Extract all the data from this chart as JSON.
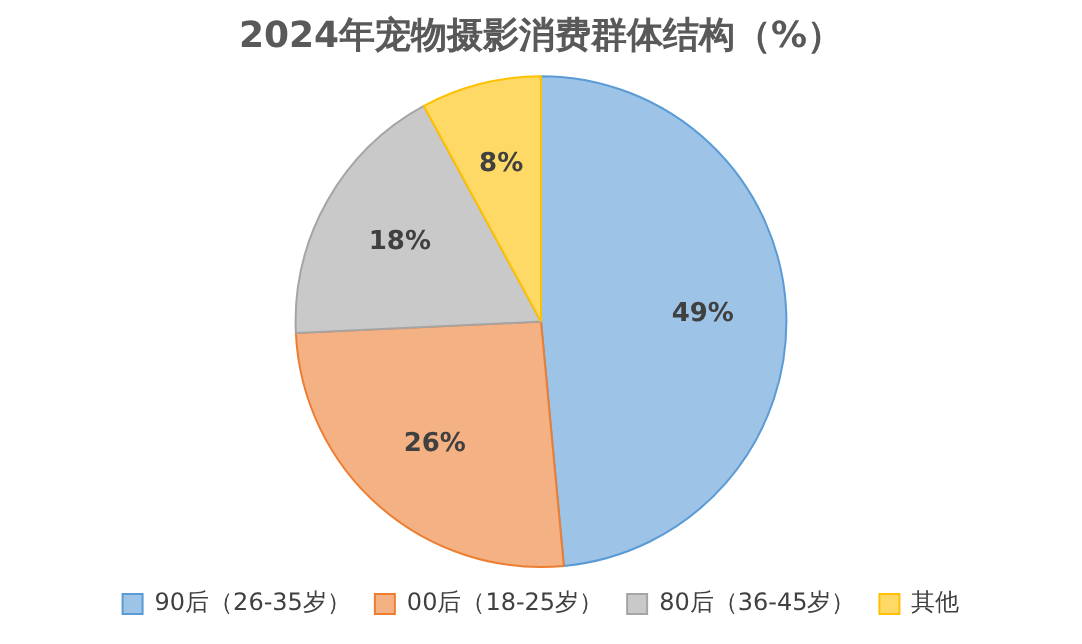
{
  "chart_data": {
    "type": "pie",
    "title": "2024年宠物摄影消费群体结构（%）",
    "categories": [
      "90后（26-35岁）",
      "00后（18-25岁）",
      "80后（36-45岁）",
      "其他"
    ],
    "values": [
      49,
      26,
      18,
      8
    ],
    "colors": [
      "#9dc3e6",
      "#f4b183",
      "#c9c9c9",
      "#ffd966"
    ],
    "value_labels": [
      "49%",
      "26%",
      "18%",
      "8%"
    ],
    "legend": "bottom"
  }
}
